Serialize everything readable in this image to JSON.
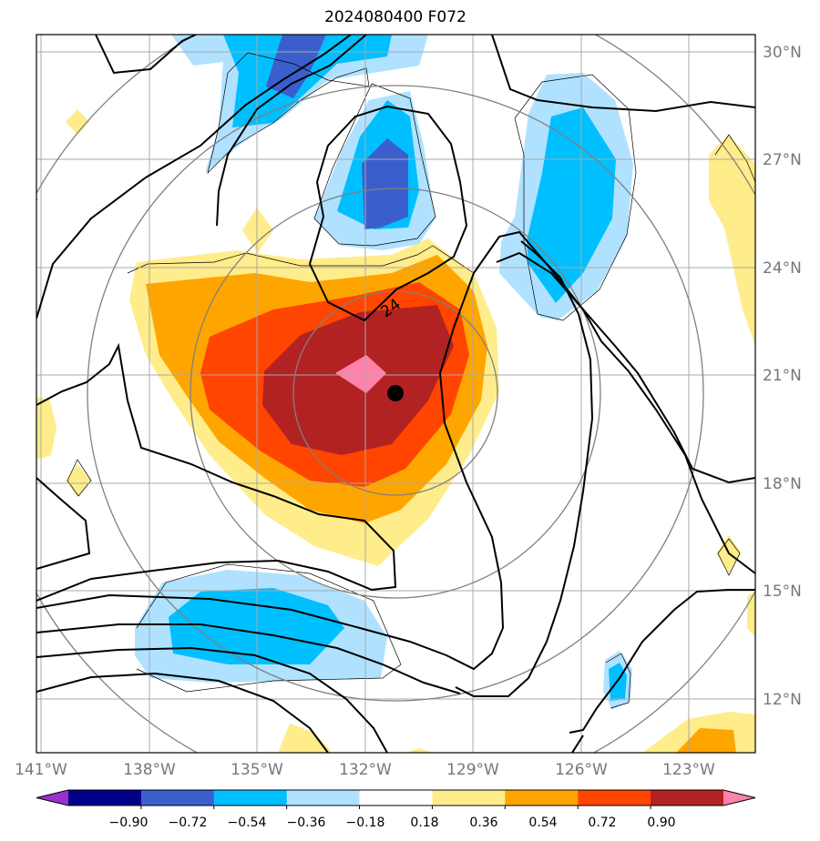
{
  "title": "2024080400 F072",
  "map": {
    "lon_range": [
      -141.5,
      -121.5
    ],
    "lat_range": [
      10.5,
      30.5
    ],
    "lon_ticks": [
      "141°W",
      "138°W",
      "135°W",
      "132°W",
      "129°W",
      "126°W",
      "123°W"
    ],
    "lat_ticks": [
      "30°N",
      "27°N",
      "24°N",
      "21°N",
      "18°N",
      "15°N",
      "12°N"
    ],
    "grid": true,
    "storm_center": {
      "lon": -131.3,
      "lat": 20.5
    },
    "range_rings_deg": [
      2.5,
      5,
      7.5,
      10
    ],
    "contour_label": "24"
  },
  "colorbar": {
    "colors": [
      "#9932CC",
      "#00008B",
      "#3A5FCD",
      "#00BFFF",
      "#B0E2FF",
      "#FFFFFF",
      "#FFEC8B",
      "#FFA500",
      "#FF4500",
      "#B22222",
      "#FF82AB"
    ],
    "tick_labels": [
      "−0.90",
      "−0.72",
      "−0.54",
      "−0.36",
      "−0.18",
      "0.18",
      "0.36",
      "0.54",
      "0.72",
      "0.90"
    ],
    "extend": "both"
  }
}
